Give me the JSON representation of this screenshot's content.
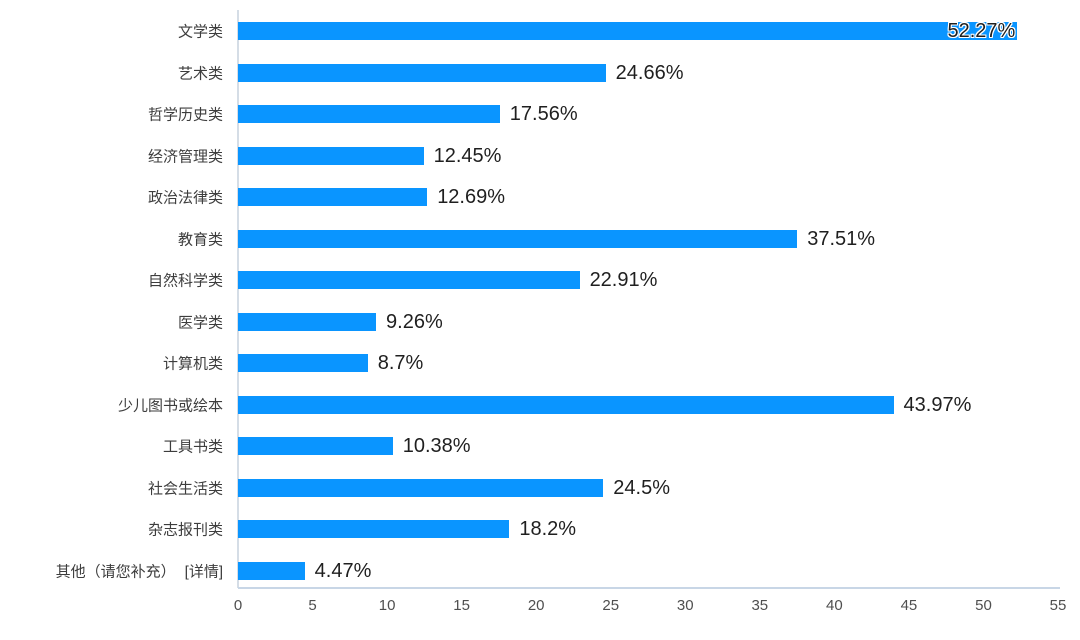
{
  "chart_data": {
    "type": "bar",
    "orientation": "horizontal",
    "title": "",
    "xlabel": "",
    "ylabel": "",
    "xlim": [
      0,
      55
    ],
    "xticks": [
      "0",
      "5",
      "10",
      "15",
      "20",
      "25",
      "30",
      "35",
      "40",
      "45",
      "50",
      "55"
    ],
    "grid": false,
    "legend": false,
    "colors": {
      "bar": "#0a95ff",
      "axis_line": "#d0dae5",
      "category_label": "#3d3d3d",
      "value_label": "#1f1f1f",
      "tick_label": "#4f4f4f",
      "value_halo": "#ffffff"
    },
    "rows": [
      {
        "label": "文学类",
        "value": 52.27,
        "display": "52.27%",
        "value_inside_bar": true
      },
      {
        "label": "艺术类",
        "value": 24.66,
        "display": "24.66%"
      },
      {
        "label": "哲学历史类",
        "value": 17.56,
        "display": "17.56%"
      },
      {
        "label": "经济管理类",
        "value": 12.45,
        "display": "12.45%"
      },
      {
        "label": "政治法律类",
        "value": 12.69,
        "display": "12.69%"
      },
      {
        "label": "教育类",
        "value": 37.51,
        "display": "37.51%"
      },
      {
        "label": "自然科学类",
        "value": 22.91,
        "display": "22.91%"
      },
      {
        "label": "医学类",
        "value": 9.26,
        "display": "9.26%"
      },
      {
        "label": "计算机类",
        "value": 8.7,
        "display": "8.7%"
      },
      {
        "label": "少儿图书或绘本",
        "value": 43.97,
        "display": "43.97%"
      },
      {
        "label": "工具书类",
        "value": 10.38,
        "display": "10.38%"
      },
      {
        "label": "社会生活类",
        "value": 24.5,
        "display": "24.5%"
      },
      {
        "label": "杂志报刊类",
        "value": 18.2,
        "display": "18.2%"
      },
      {
        "label": "其他（请您补充）",
        "value": 4.47,
        "display": "4.47%",
        "suffix": "[详情]"
      }
    ]
  }
}
